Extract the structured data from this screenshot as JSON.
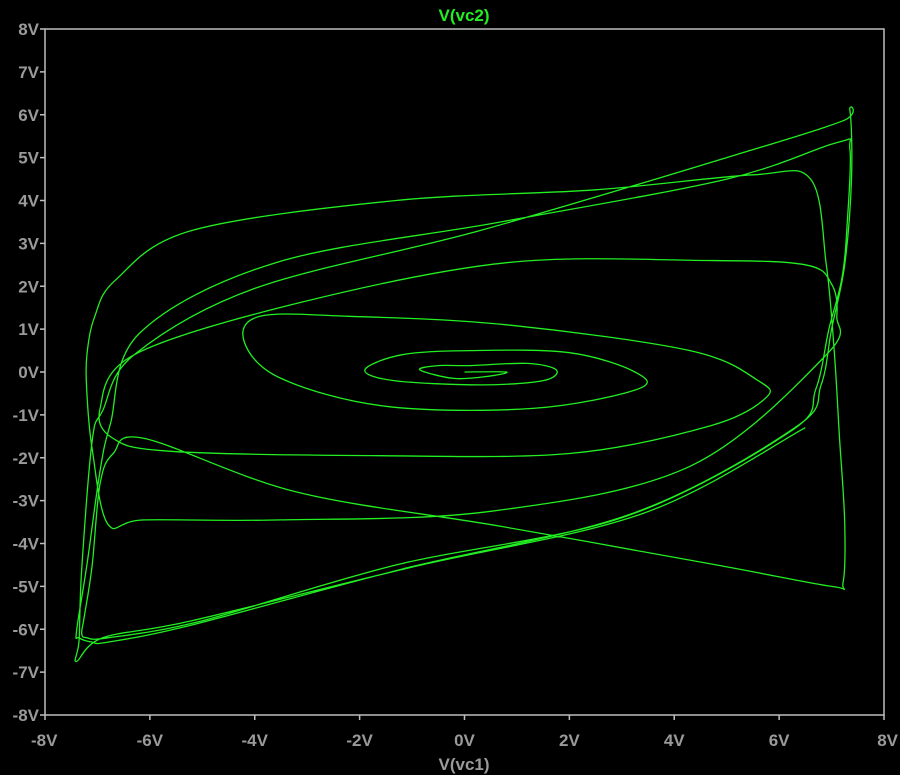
{
  "chart_data": {
    "type": "line",
    "title": "V(vc2)",
    "xlabel": "V(vc1)",
    "ylabel": "",
    "xlim": [
      -8,
      8
    ],
    "ylim": [
      -8,
      8
    ],
    "x_ticks": [
      "-8V",
      "-6V",
      "-4V",
      "-2V",
      "0V",
      "2V",
      "4V",
      "6V",
      "8V"
    ],
    "y_ticks": [
      "8V",
      "7V",
      "6V",
      "5V",
      "4V",
      "3V",
      "2V",
      "1V",
      "0V",
      "-1V",
      "-2V",
      "-3V",
      "-4V",
      "-5V",
      "-6V",
      "-7V",
      "-8V"
    ],
    "grid": false,
    "colors": {
      "background": "#000000",
      "trace": "#22ee22",
      "frame": "#bdbdbd",
      "tick_text": "#9a9a9a",
      "title_text": "#22ee22",
      "xlabel_text": "#9a9a9a"
    },
    "series": [
      {
        "x": [
          0.0,
          0.8,
          0.45,
          -0.2,
          -0.85,
          -0.5,
          0.1,
          1.2,
          1.75,
          1.5,
          0.3,
          -1.35,
          -1.9,
          -1.2,
          0.1,
          2.0,
          3.25,
          3.3,
          1.3,
          -1.5,
          -3.5,
          -4.2,
          -3.9,
          -2.2,
          0.8,
          4.3,
          5.6,
          5.75,
          4.7,
          2.0,
          -1.8,
          -5.6,
          -6.7,
          -6.95,
          -6.3,
          -3.2,
          0.8,
          4.6,
          6.5,
          7.0,
          7.1,
          6.9,
          4.3,
          0.5,
          -3.5,
          -6.1,
          -6.8,
          -7.1,
          -7.2,
          -7.2,
          -7.05,
          -6.65,
          -5.2,
          -1.3,
          2.5,
          5.5,
          6.6,
          6.9,
          7.05,
          7.15,
          7.25,
          7.22,
          7.0,
          4.8,
          0.7,
          -3.2,
          -6.1,
          -6.7,
          -6.95,
          -7.1,
          -7.25,
          -7.3,
          -7.2,
          -6.8,
          -5.0,
          -1.3,
          3.0,
          6.2,
          6.7,
          6.95,
          7.2,
          7.3,
          7.35,
          7.1,
          5.0,
          0.7,
          -3.6,
          -6.2,
          -6.75,
          -6.95,
          -7.2,
          -7.4,
          -7.35,
          -7.1,
          -6.8,
          -5.2,
          -1.2,
          3.2,
          6.3,
          6.8,
          7.0,
          7.25,
          7.38,
          7.35,
          7.2,
          5.0,
          0.3,
          -4.0,
          -6.3,
          -6.9,
          -7.1,
          -7.3,
          -7.35,
          -7.4,
          -6.9,
          -5.2,
          -1.0,
          3.4,
          6.5
        ],
        "y": [
          0.0,
          0.0,
          -0.1,
          -0.15,
          0.05,
          0.15,
          0.15,
          0.2,
          0.05,
          -0.2,
          -0.3,
          -0.2,
          0.05,
          0.4,
          0.5,
          0.45,
          0.0,
          -0.4,
          -0.85,
          -0.8,
          -0.15,
          0.7,
          1.3,
          1.3,
          1.1,
          0.5,
          -0.2,
          -0.6,
          -1.25,
          -1.9,
          -1.95,
          -1.85,
          -1.55,
          -0.85,
          0.4,
          1.6,
          2.55,
          2.6,
          2.5,
          2.05,
          1.3,
          0.4,
          -2.2,
          -3.25,
          -3.45,
          -3.45,
          -3.55,
          -1.8,
          -0.5,
          0.4,
          1.3,
          2.15,
          3.3,
          4.0,
          4.25,
          4.6,
          4.5,
          2.5,
          0.5,
          -1.5,
          -3.5,
          -4.9,
          -5.0,
          -4.5,
          -3.6,
          -2.8,
          -1.55,
          -1.9,
          -2.6,
          -4.5,
          -5.7,
          -6.1,
          -6.2,
          -6.2,
          -5.8,
          -4.5,
          -3.4,
          -1.4,
          -0.4,
          1.0,
          2.2,
          3.5,
          5.2,
          5.35,
          4.5,
          3.5,
          2.55,
          0.9,
          -1.2,
          -2.3,
          -4.5,
          -6.05,
          -6.2,
          -6.3,
          -6.3,
          -5.9,
          -4.6,
          -3.3,
          -1.3,
          -0.3,
          1.0,
          2.5,
          4.5,
          6.1,
          5.85,
          5.0,
          3.3,
          1.95,
          0.4,
          -0.9,
          -1.6,
          -4.6,
          -6.25,
          -6.75,
          -6.2,
          -5.8,
          -4.55,
          -3.3,
          -1.3
        ]
      }
    ]
  }
}
